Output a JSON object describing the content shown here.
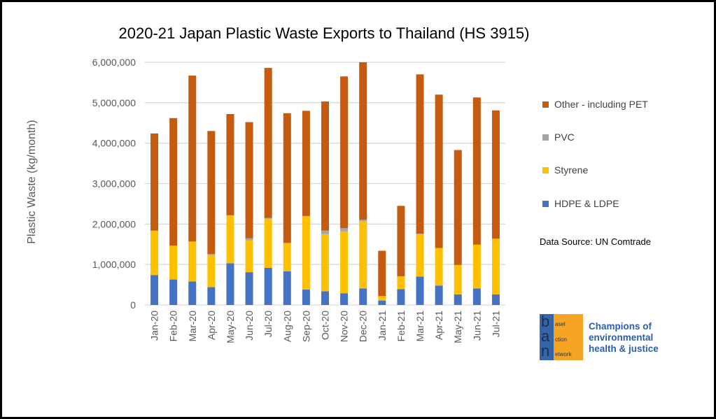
{
  "chart_data": {
    "type": "bar",
    "stacked": true,
    "title": "2020-21 Japan Plastic Waste Exports to Thailand (HS 3915)",
    "xlabel": "",
    "ylabel": "Plastic Waste (kg/month)",
    "ylim": [
      0,
      6000000
    ],
    "yticks": [
      "0",
      "1,000,000",
      "2,000,000",
      "3,000,000",
      "4,000,000",
      "5,000,000",
      "6,000,000"
    ],
    "grid": true,
    "legend_position": "right",
    "categories": [
      "Jan-20",
      "Feb-20",
      "Mar-20",
      "Apr-20",
      "May-20",
      "Jun-20",
      "Jul-20",
      "Aug-20",
      "Sep-20",
      "Oct-20",
      "Nov-20",
      "Dec-20",
      "Jan-21",
      "Feb-21",
      "Mar-21",
      "Apr-21",
      "May-21",
      "Jun-21",
      "Jul-21"
    ],
    "series": [
      {
        "name": "HDPE & LDPE",
        "color": "#4472c4",
        "values": [
          740000,
          630000,
          580000,
          440000,
          1030000,
          810000,
          920000,
          830000,
          380000,
          340000,
          290000,
          410000,
          110000,
          390000,
          700000,
          480000,
          260000,
          410000,
          260000
        ]
      },
      {
        "name": "Styrene",
        "color": "#ffc000",
        "values": [
          1090000,
          830000,
          980000,
          790000,
          1180000,
          790000,
          1210000,
          690000,
          1810000,
          1410000,
          1530000,
          1660000,
          110000,
          320000,
          1050000,
          930000,
          730000,
          1080000,
          1380000
        ]
      },
      {
        "name": "PVC",
        "color": "#a5a5a5",
        "values": [
          10000,
          10000,
          10000,
          30000,
          10000,
          50000,
          20000,
          20000,
          10000,
          90000,
          80000,
          40000,
          0,
          0,
          10000,
          0,
          0,
          0,
          0
        ]
      },
      {
        "name": "Other - including PET",
        "color": "#c55a11",
        "values": [
          2400000,
          3150000,
          4100000,
          3040000,
          2500000,
          2870000,
          3710000,
          3200000,
          2600000,
          3190000,
          3750000,
          3890000,
          1120000,
          1740000,
          3940000,
          3790000,
          2840000,
          3640000,
          3170000
        ]
      }
    ]
  },
  "source_note": "Data Source: UN Comtrade",
  "logo": {
    "letters": [
      "b",
      "a",
      "n"
    ],
    "words": [
      "asel",
      "ction",
      "etwork"
    ],
    "text": "Basel Action Network"
  },
  "tagline": [
    "Champions of",
    "environmental",
    "health & justice"
  ]
}
